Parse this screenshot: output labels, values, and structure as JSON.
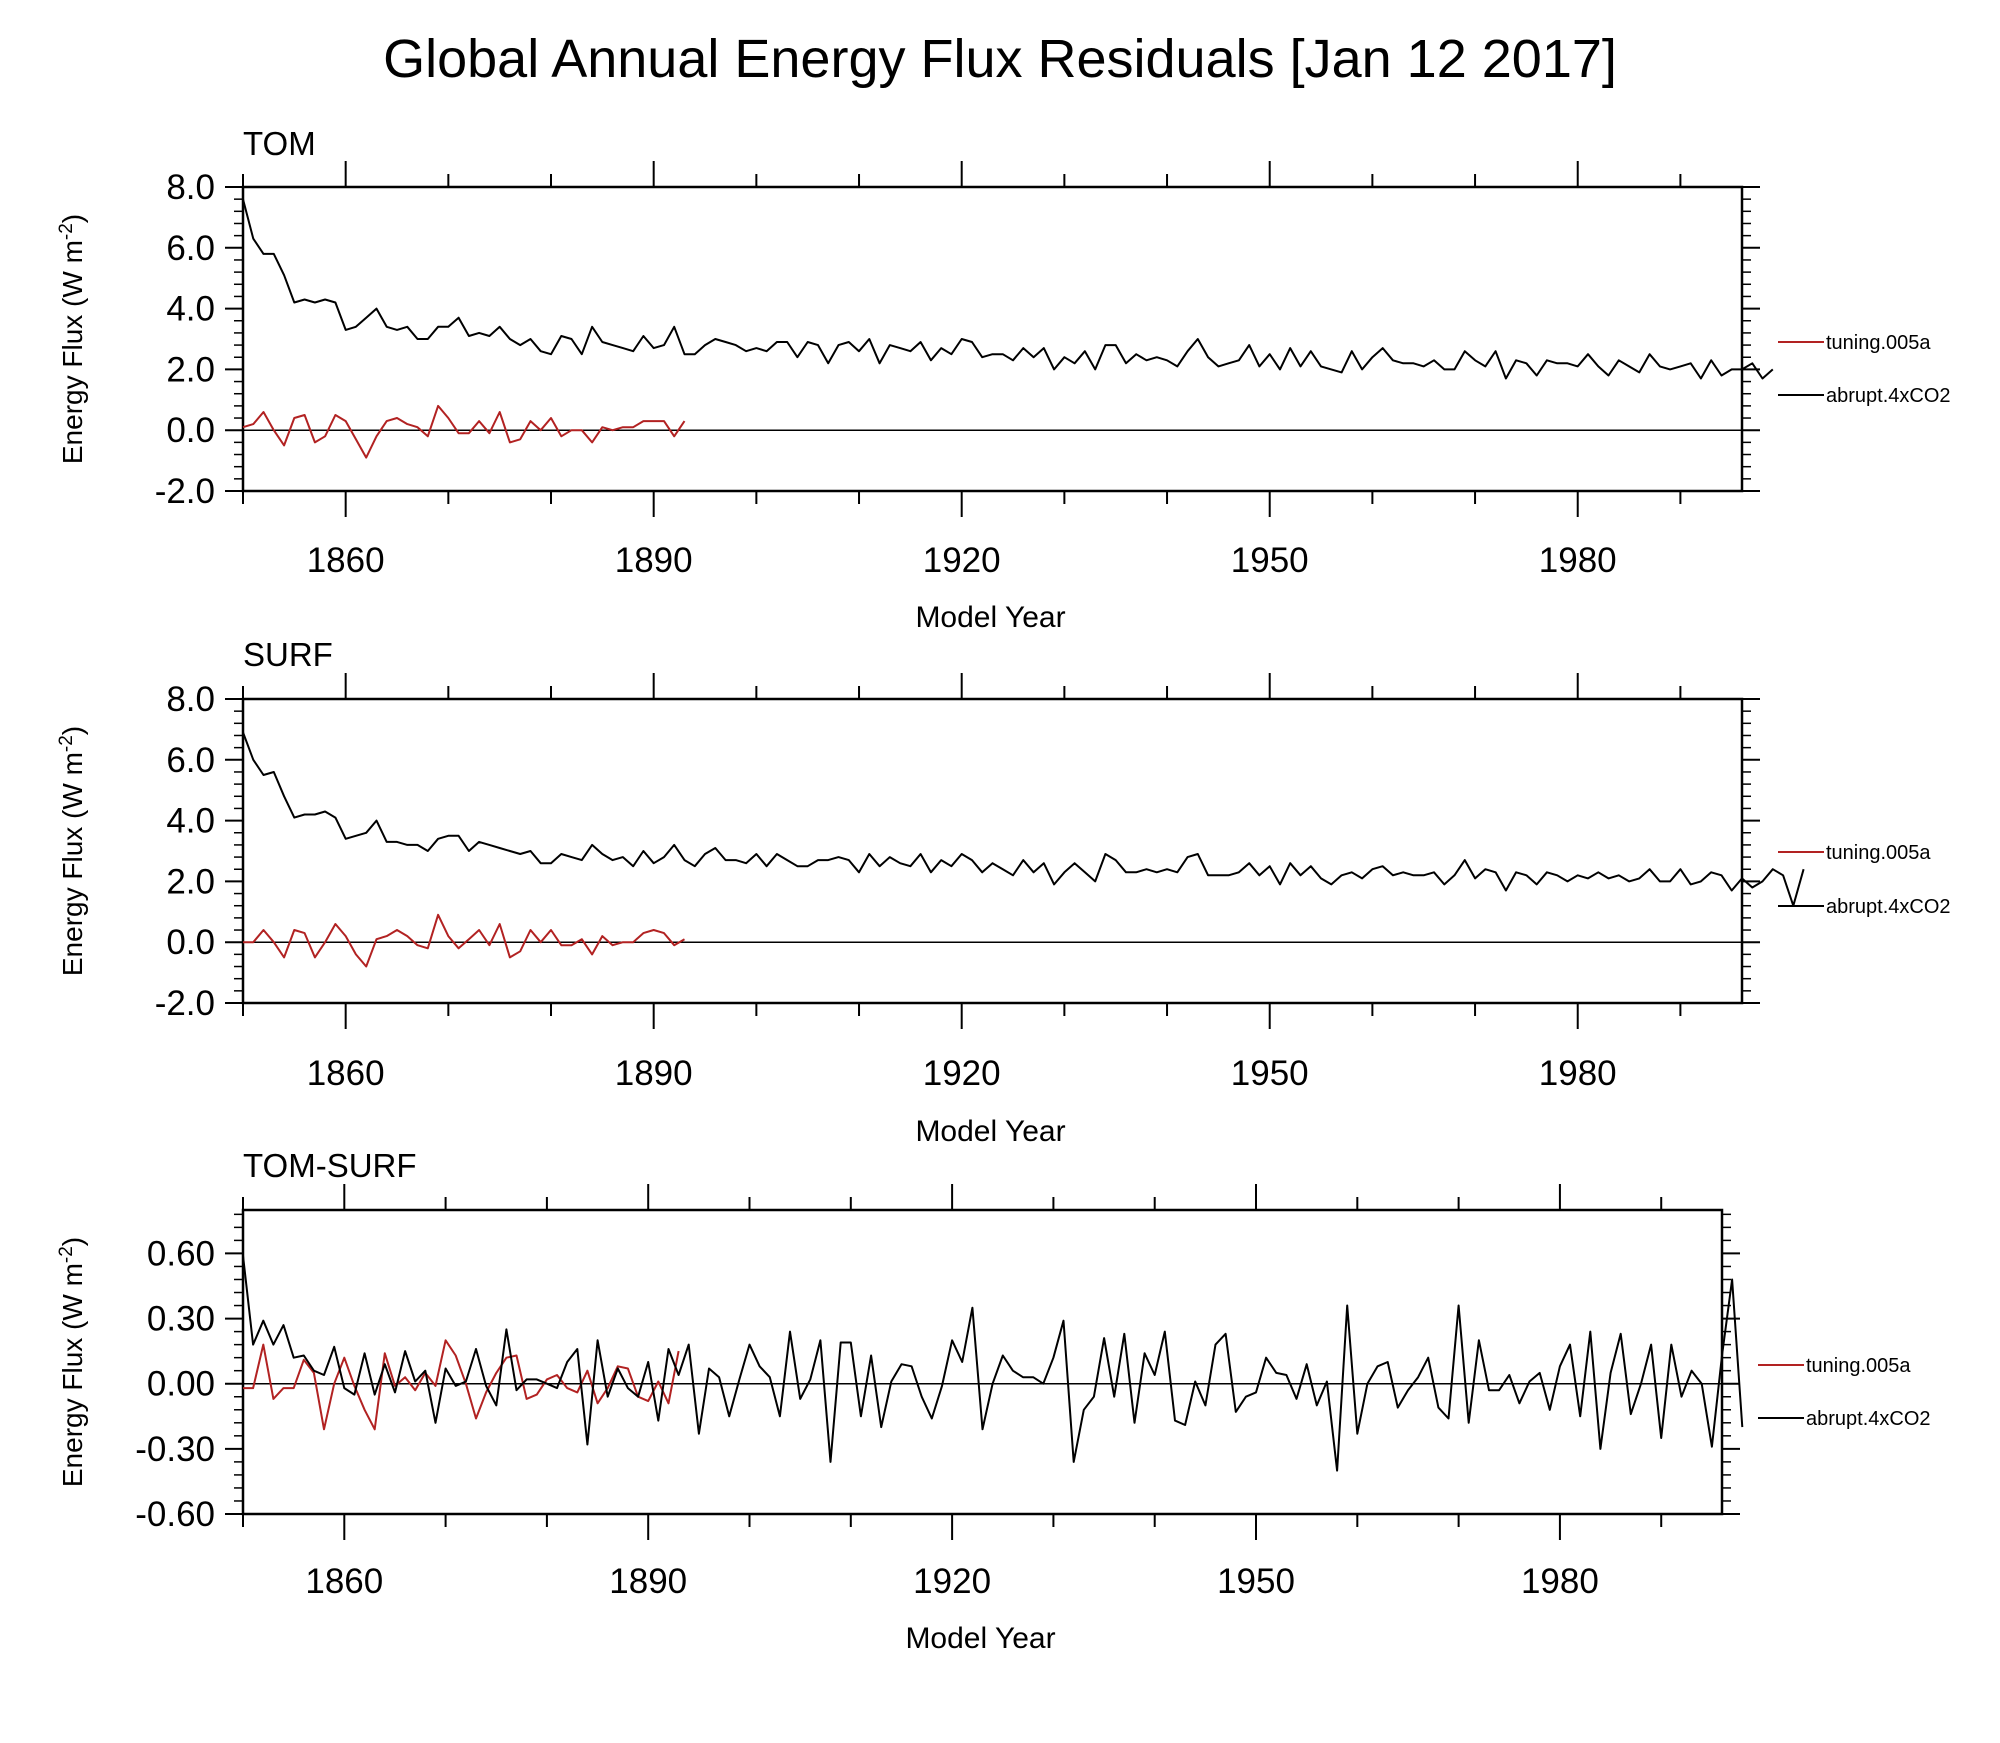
{
  "title": "Global Annual Energy Flux Residuals [Jan 12 2017]",
  "colors": {
    "tuning": "#b22222",
    "abrupt": "#000000",
    "axis": "#000000"
  },
  "legend": [
    "tuning.005a",
    "abrupt.4xCO2"
  ],
  "chart_data": [
    {
      "type": "line",
      "panel_label": "TOM",
      "xlabel": "Model Year",
      "ylabel": "Energy Flux (W m",
      "ylabel_sup": "-2",
      "ylabel_close": ")",
      "xlim": [
        1850,
        1996
      ],
      "ylim": [
        -2.0,
        8.0
      ],
      "xticks": [
        1860,
        1890,
        1920,
        1950,
        1980
      ],
      "yticks": [
        -2.0,
        0.0,
        2.0,
        4.0,
        6.0,
        8.0
      ],
      "ytick_labels": [
        "-2.0",
        "0.0",
        "2.0",
        "4.0",
        "6.0",
        "8.0"
      ],
      "legend_position": "right",
      "series": [
        {
          "name": "tuning.005a",
          "x_start": 1850,
          "values": [
            0.1,
            0.2,
            0.6,
            0.0,
            -0.5,
            0.4,
            0.5,
            -0.4,
            -0.2,
            0.5,
            0.3,
            -0.3,
            -0.9,
            -0.2,
            0.3,
            0.4,
            0.2,
            0.1,
            -0.2,
            0.8,
            0.4,
            -0.1,
            -0.1,
            0.3,
            -0.1,
            0.6,
            -0.4,
            -0.3,
            0.3,
            0.0,
            0.4,
            -0.2,
            0.0,
            0.0,
            -0.4,
            0.1,
            0.0,
            0.1,
            0.1,
            0.3,
            0.3,
            0.3,
            -0.2,
            0.3
          ]
        },
        {
          "name": "abrupt.4xCO2",
          "x_start": 1850,
          "values": [
            7.6,
            6.3,
            5.8,
            5.8,
            5.1,
            4.2,
            4.3,
            4.2,
            4.3,
            4.2,
            3.3,
            3.4,
            3.7,
            4.0,
            3.4,
            3.3,
            3.4,
            3.0,
            3.0,
            3.4,
            3.4,
            3.7,
            3.1,
            3.2,
            3.1,
            3.4,
            3.0,
            2.8,
            3.0,
            2.6,
            2.5,
            3.1,
            3.0,
            2.5,
            3.4,
            2.9,
            2.8,
            2.7,
            2.6,
            3.1,
            2.7,
            2.8,
            3.4,
            2.5,
            2.5,
            2.8,
            3.0,
            2.9,
            2.8,
            2.6,
            2.7,
            2.6,
            2.9,
            2.9,
            2.4,
            2.9,
            2.8,
            2.2,
            2.8,
            2.9,
            2.6,
            3.0,
            2.2,
            2.8,
            2.7,
            2.6,
            2.9,
            2.3,
            2.7,
            2.5,
            3.0,
            2.9,
            2.4,
            2.5,
            2.5,
            2.3,
            2.7,
            2.4,
            2.7,
            2.0,
            2.4,
            2.2,
            2.6,
            2.0,
            2.8,
            2.8,
            2.2,
            2.5,
            2.3,
            2.4,
            2.3,
            2.1,
            2.6,
            3.0,
            2.4,
            2.1,
            2.2,
            2.3,
            2.8,
            2.1,
            2.5,
            2.0,
            2.7,
            2.1,
            2.6,
            2.1,
            2.0,
            1.9,
            2.6,
            2.0,
            2.4,
            2.7,
            2.3,
            2.2,
            2.2,
            2.1,
            2.3,
            2.0,
            2.0,
            2.6,
            2.3,
            2.1,
            2.6,
            1.7,
            2.3,
            2.2,
            1.8,
            2.3,
            2.2,
            2.2,
            2.1,
            2.5,
            2.1,
            1.8,
            2.3,
            2.1,
            1.9,
            2.5,
            2.1,
            2.0,
            2.1,
            2.2,
            1.7,
            2.3,
            1.8,
            2.0,
            2.0,
            2.2,
            1.7,
            2.0
          ]
        }
      ]
    },
    {
      "type": "line",
      "panel_label": "SURF",
      "xlabel": "Model Year",
      "ylabel": "Energy Flux (W m",
      "ylabel_sup": "-2",
      "ylabel_close": ")",
      "xlim": [
        1850,
        1996
      ],
      "ylim": [
        -2.0,
        8.0
      ],
      "xticks": [
        1860,
        1890,
        1920,
        1950,
        1980
      ],
      "yticks": [
        -2.0,
        0.0,
        2.0,
        4.0,
        6.0,
        8.0
      ],
      "ytick_labels": [
        "-2.0",
        "0.0",
        "2.0",
        "4.0",
        "6.0",
        "8.0"
      ],
      "legend_position": "right",
      "series": [
        {
          "name": "tuning.005a",
          "x_start": 1850,
          "values": [
            0.0,
            0.0,
            0.4,
            0.0,
            -0.5,
            0.4,
            0.3,
            -0.5,
            0.0,
            0.6,
            0.2,
            -0.4,
            -0.8,
            0.1,
            0.2,
            0.4,
            0.2,
            -0.1,
            -0.2,
            0.9,
            0.2,
            -0.2,
            0.1,
            0.4,
            -0.1,
            0.6,
            -0.5,
            -0.3,
            0.4,
            0.0,
            0.4,
            -0.1,
            -0.1,
            0.1,
            -0.4,
            0.2,
            -0.1,
            0.0,
            0.0,
            0.3,
            0.4,
            0.3,
            -0.1,
            0.1
          ]
        },
        {
          "name": "abrupt.4xCO2",
          "x_start": 1850,
          "values": [
            6.9,
            6.0,
            5.5,
            5.6,
            4.8,
            4.1,
            4.2,
            4.2,
            4.3,
            4.1,
            3.4,
            3.5,
            3.6,
            4.0,
            3.3,
            3.3,
            3.2,
            3.2,
            3.0,
            3.4,
            3.5,
            3.5,
            3.0,
            3.3,
            3.2,
            3.1,
            3.0,
            2.9,
            3.0,
            2.6,
            2.6,
            2.9,
            2.8,
            2.7,
            3.2,
            2.9,
            2.7,
            2.8,
            2.5,
            3.0,
            2.6,
            2.8,
            3.2,
            2.7,
            2.5,
            2.9,
            3.1,
            2.7,
            2.7,
            2.6,
            2.9,
            2.5,
            2.9,
            2.7,
            2.5,
            2.5,
            2.7,
            2.7,
            2.8,
            2.7,
            2.3,
            2.9,
            2.5,
            2.8,
            2.6,
            2.5,
            2.9,
            2.3,
            2.7,
            2.5,
            2.9,
            2.7,
            2.3,
            2.6,
            2.4,
            2.2,
            2.7,
            2.3,
            2.6,
            1.9,
            2.3,
            2.6,
            2.3,
            2.0,
            2.9,
            2.7,
            2.3,
            2.3,
            2.4,
            2.3,
            2.4,
            2.3,
            2.8,
            2.9,
            2.2,
            2.2,
            2.2,
            2.3,
            2.6,
            2.2,
            2.5,
            1.9,
            2.6,
            2.2,
            2.5,
            2.1,
            1.9,
            2.2,
            2.3,
            2.1,
            2.4,
            2.5,
            2.2,
            2.3,
            2.2,
            2.2,
            2.3,
            1.9,
            2.2,
            2.7,
            2.1,
            2.4,
            2.3,
            1.7,
            2.3,
            2.2,
            1.9,
            2.3,
            2.2,
            2.0,
            2.2,
            2.1,
            2.3,
            2.1,
            2.2,
            2.0,
            2.1,
            2.4,
            2.0,
            2.0,
            2.4,
            1.9,
            2.0,
            2.3,
            2.2,
            1.7,
            2.1,
            1.8,
            2.0,
            2.4,
            2.2,
            1.2,
            2.4
          ]
        }
      ]
    },
    {
      "type": "line",
      "panel_label": "TOM-SURF",
      "xlabel": "Model Year",
      "ylabel": "Energy Flux (W m",
      "ylabel_sup": "-2",
      "ylabel_close": ")",
      "xlim": [
        1850,
        1996
      ],
      "ylim": [
        -0.6,
        0.8
      ],
      "xticks": [
        1860,
        1890,
        1920,
        1950,
        1980
      ],
      "yticks": [
        -0.6,
        -0.3,
        0.0,
        0.3,
        0.6
      ],
      "ytick_labels": [
        "-0.60",
        "-0.30",
        "0.00",
        "0.30",
        "0.60"
      ],
      "legend_position": "right",
      "series": [
        {
          "name": "tuning.005a",
          "x_start": 1850,
          "values": [
            -0.02,
            -0.02,
            0.18,
            -0.07,
            -0.02,
            -0.02,
            0.11,
            0.05,
            -0.21,
            0.0,
            0.12,
            -0.01,
            -0.12,
            -0.21,
            0.14,
            -0.01,
            0.03,
            -0.03,
            0.05,
            -0.01,
            0.2,
            0.13,
            0.0,
            -0.16,
            -0.04,
            0.05,
            0.12,
            0.13,
            -0.07,
            -0.05,
            0.02,
            0.04,
            -0.02,
            -0.04,
            0.06,
            -0.09,
            -0.02,
            0.08,
            0.07,
            -0.06,
            -0.08,
            0.01,
            -0.09,
            0.15
          ]
        },
        {
          "name": "abrupt.4xCO2",
          "x_start": 1850,
          "values": [
            0.59,
            0.18,
            0.29,
            0.18,
            0.27,
            0.12,
            0.13,
            0.06,
            0.04,
            0.17,
            -0.02,
            -0.05,
            0.14,
            -0.05,
            0.09,
            -0.04,
            0.15,
            0.01,
            0.06,
            -0.18,
            0.07,
            -0.01,
            0.01,
            0.16,
            -0.01,
            -0.1,
            0.25,
            -0.03,
            0.02,
            0.02,
            0.0,
            -0.02,
            0.1,
            0.16,
            -0.28,
            0.2,
            -0.06,
            0.07,
            -0.02,
            -0.06,
            0.1,
            -0.17,
            0.16,
            0.04,
            0.18,
            -0.23,
            0.07,
            0.03,
            -0.15,
            0.02,
            0.18,
            0.08,
            0.03,
            -0.15,
            0.24,
            -0.07,
            0.02,
            0.2,
            -0.36,
            0.19,
            0.19,
            -0.15,
            0.13,
            -0.2,
            0.01,
            0.09,
            0.08,
            -0.06,
            -0.16,
            -0.01,
            0.2,
            0.1,
            0.35,
            -0.21,
            0.0,
            0.13,
            0.06,
            0.03,
            0.03,
            0.0,
            0.12,
            0.29,
            -0.36,
            -0.12,
            -0.06,
            0.21,
            -0.06,
            0.23,
            -0.18,
            0.14,
            0.04,
            0.24,
            -0.17,
            -0.19,
            0.01,
            -0.1,
            0.18,
            0.23,
            -0.13,
            -0.06,
            -0.04,
            0.12,
            0.05,
            0.04,
            -0.07,
            0.09,
            -0.1,
            0.01,
            -0.4,
            0.36,
            -0.23,
            0.0,
            0.08,
            0.1,
            -0.11,
            -0.03,
            0.03,
            0.12,
            -0.11,
            -0.16,
            0.36,
            -0.18,
            0.2,
            -0.03,
            -0.03,
            0.04,
            -0.09,
            0.01,
            0.05,
            -0.12,
            0.08,
            0.18,
            -0.15,
            0.24,
            -0.3,
            0.05,
            0.23,
            -0.14,
            0.0,
            0.18,
            -0.25,
            0.18,
            -0.06,
            0.06,
            0.0,
            -0.29,
            0.13,
            0.48,
            -0.2
          ]
        }
      ]
    }
  ]
}
